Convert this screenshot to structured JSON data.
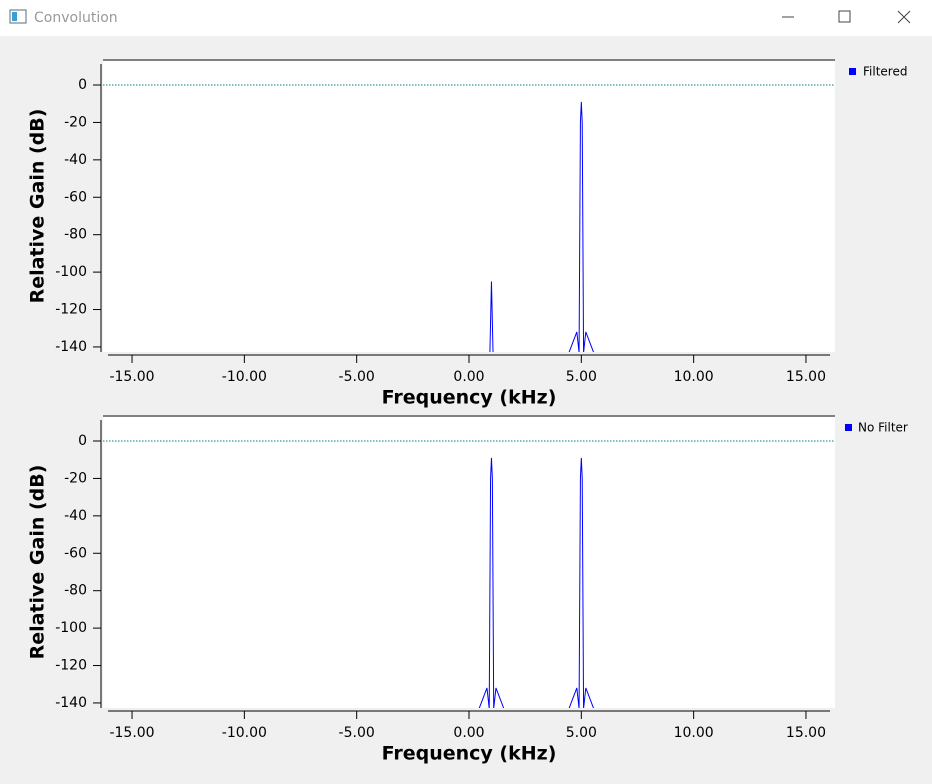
{
  "window_title": "Convolution",
  "chart_data": [
    {
      "type": "line",
      "x_label": "Frequency (kHz)",
      "y_label": "Relative Gain (dB)",
      "xlim": [
        -16.07,
        16.07
      ],
      "ylim": [
        -142.7,
        12.3
      ],
      "xticks": [
        {
          "value": -15,
          "label": "-15.00"
        },
        {
          "value": -10,
          "label": "-10.00"
        },
        {
          "value": -5,
          "label": "-5.00"
        },
        {
          "value": 0,
          "label": "0.00"
        },
        {
          "value": 5,
          "label": "5.00"
        },
        {
          "value": 10,
          "label": "10.00"
        },
        {
          "value": 15,
          "label": "15.00"
        }
      ],
      "yticks": [
        0,
        -20,
        -40,
        -60,
        -80,
        -100,
        -120,
        -140
      ],
      "reference_line": 0,
      "reference_color": "#008080",
      "series": [
        {
          "name": "Filtered",
          "color": "#0000ff",
          "x": [
            0.93,
            1.0,
            1.07,
            null,
            4.45,
            4.8,
            4.9,
            4.96,
            5.0,
            5.04,
            5.1,
            5.2,
            5.55
          ],
          "values": [
            -143,
            -105,
            -143,
            null,
            -143,
            -132,
            -143,
            -20,
            -9,
            -20,
            -143,
            -132,
            -143
          ]
        }
      ]
    },
    {
      "type": "line",
      "x_label": "Frequency (kHz)",
      "y_label": "Relative Gain (dB)",
      "xlim": [
        -16.07,
        16.07
      ],
      "ylim": [
        -142.7,
        12.3
      ],
      "xticks": [
        {
          "value": -15,
          "label": "-15.00"
        },
        {
          "value": -10,
          "label": "-10.00"
        },
        {
          "value": -5,
          "label": "-5.00"
        },
        {
          "value": 0,
          "label": "0.00"
        },
        {
          "value": 5,
          "label": "5.00"
        },
        {
          "value": 10,
          "label": "10.00"
        },
        {
          "value": 15,
          "label": "15.00"
        }
      ],
      "yticks": [
        0,
        -20,
        -40,
        -60,
        -80,
        -100,
        -120,
        -140
      ],
      "reference_line": 0,
      "reference_color": "#008080",
      "series": [
        {
          "name": "No Filter",
          "color": "#0000ff",
          "x": [
            0.45,
            0.8,
            0.9,
            0.96,
            1.0,
            1.04,
            1.1,
            1.2,
            1.55,
            null,
            4.45,
            4.8,
            4.9,
            4.96,
            5.0,
            5.04,
            5.1,
            5.2,
            5.55
          ],
          "values": [
            -143,
            -132,
            -143,
            -20,
            -9,
            -20,
            -143,
            -132,
            -143,
            null,
            -143,
            -132,
            -143,
            -20,
            -9,
            -20,
            -143,
            -132,
            -143
          ]
        }
      ]
    }
  ]
}
